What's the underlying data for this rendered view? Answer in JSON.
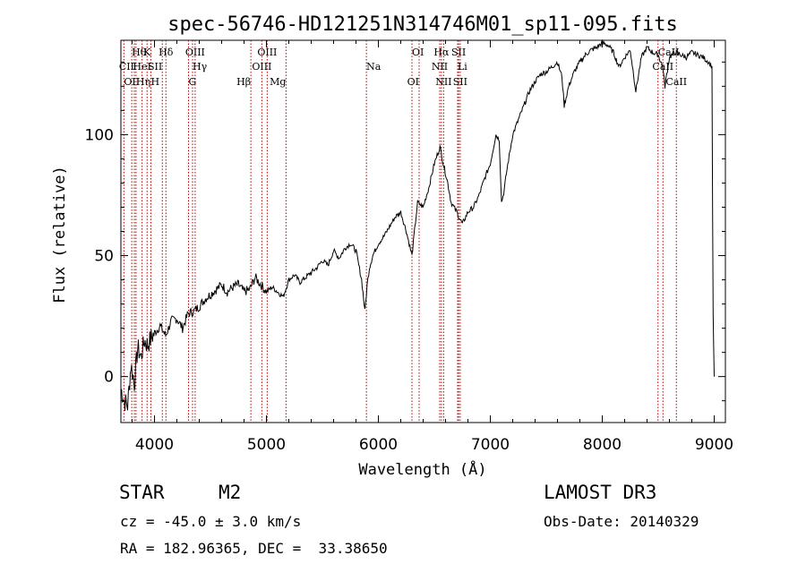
{
  "chart_data": {
    "type": "line",
    "title": "spec-56746-HD121251N314746M01_sp11-095.fits",
    "xlabel": "Wavelength (Å)",
    "ylabel": "Flux (relative)",
    "xlim": [
      3700,
      9100
    ],
    "ylim": [
      -19,
      139
    ],
    "xticks": [
      4000,
      5000,
      6000,
      7000,
      8000,
      9000
    ],
    "yticks": [
      0,
      50,
      100
    ],
    "series": [
      {
        "name": "spectrum",
        "x": [
          3700,
          3730,
          3760,
          3790,
          3820,
          3850,
          3880,
          3910,
          3940,
          3970,
          4000,
          4050,
          4100,
          4150,
          4200,
          4250,
          4300,
          4350,
          4400,
          4450,
          4500,
          4550,
          4600,
          4650,
          4700,
          4750,
          4800,
          4850,
          4900,
          4950,
          5000,
          5050,
          5100,
          5150,
          5200,
          5250,
          5300,
          5350,
          5400,
          5450,
          5500,
          5550,
          5600,
          5650,
          5700,
          5750,
          5800,
          5850,
          5880,
          5900,
          5920,
          5950,
          6000,
          6050,
          6100,
          6150,
          6200,
          6250,
          6300,
          6350,
          6400,
          6450,
          6500,
          6550,
          6580,
          6620,
          6650,
          6700,
          6750,
          6800,
          6850,
          6900,
          6950,
          7000,
          7050,
          7080,
          7100,
          7120,
          7150,
          7200,
          7250,
          7300,
          7350,
          7400,
          7450,
          7500,
          7550,
          7600,
          7640,
          7660,
          7700,
          7750,
          7800,
          7850,
          7900,
          7950,
          8000,
          8050,
          8100,
          8150,
          8200,
          8250,
          8300,
          8350,
          8400,
          8450,
          8500,
          8540,
          8560,
          8600,
          8650,
          8700,
          8750,
          8800,
          8850,
          8900,
          8950,
          8980,
          8990,
          9000
        ],
        "values": [
          -5,
          -10,
          -12,
          5,
          -3,
          12,
          8,
          15,
          13,
          16,
          18,
          21,
          17,
          23,
          24,
          20,
          26,
          27,
          29,
          32,
          34,
          36,
          38,
          35,
          37,
          38,
          35,
          36,
          41,
          38,
          35,
          37,
          35,
          33,
          40,
          42,
          39,
          41,
          43,
          45,
          48,
          46,
          52,
          49,
          53,
          55,
          52,
          40,
          27,
          38,
          45,
          50,
          55,
          58,
          62,
          66,
          68,
          60,
          50,
          72,
          70,
          78,
          88,
          95,
          88,
          80,
          72,
          68,
          63,
          68,
          70,
          75,
          82,
          88,
          100,
          98,
          72,
          76,
          86,
          100,
          106,
          112,
          118,
          122,
          125,
          126,
          128,
          130,
          124,
          112,
          120,
          126,
          130,
          133,
          135,
          136,
          138,
          137,
          134,
          128,
          132,
          135,
          118,
          132,
          136,
          134,
          133,
          128,
          120,
          132,
          134,
          133,
          132,
          134,
          133,
          132,
          130,
          128,
          25,
          0
        ]
      }
    ],
    "line_markers": [
      {
        "label": "Hθ",
        "x": 3797,
        "row": 1,
        "label_align": "start"
      },
      {
        "label": "CII",
        "x": 3820,
        "row": 2,
        "label_align": "end"
      },
      {
        "label": "OII",
        "x": 3727,
        "row": 3,
        "label_align": "start"
      },
      {
        "label": "HeI",
        "x": 3889,
        "row": 2,
        "label_align": "middle"
      },
      {
        "label": "Hη",
        "x": 3835,
        "row": 3,
        "label_align": "start"
      },
      {
        "label": "K",
        "x": 3934,
        "row": 1,
        "label_align": "middle"
      },
      {
        "label": "H",
        "x": 3968,
        "row": 3,
        "label_align": "start"
      },
      {
        "label": "SII",
        "x": 4070,
        "row": 2,
        "label_align": "end"
      },
      {
        "label": "Hδ",
        "x": 4102,
        "row": 1,
        "label_align": "middle"
      },
      {
        "label": "OIII",
        "x": 4363,
        "row": 1,
        "label_align": "middle"
      },
      {
        "label": "Hγ",
        "x": 4340,
        "row": 2,
        "label_align": "start"
      },
      {
        "label": "G",
        "x": 4304,
        "row": 3,
        "label_align": "start"
      },
      {
        "label": "Hβ",
        "x": 4861,
        "row": 3,
        "label_align": "end"
      },
      {
        "label": "OIII",
        "x": 5007,
        "row": 1,
        "label_align": "middle"
      },
      {
        "label": "OIII",
        "x": 4959,
        "row": 2,
        "label_align": "middle"
      },
      {
        "label": "Mg",
        "x": 5175,
        "row": 3,
        "label_align": "end"
      },
      {
        "label": "Na",
        "x": 5893,
        "row": 2,
        "label_align": "start"
      },
      {
        "label": "OI",
        "x": 6300,
        "row": 1,
        "label_align": "start"
      },
      {
        "label": "OI",
        "x": 6364,
        "row": 3,
        "label_align": "end"
      },
      {
        "label": "Hα",
        "x": 6563,
        "row": 1,
        "label_align": "middle"
      },
      {
        "label": "NII",
        "x": 6548,
        "row": 2,
        "label_align": "middle"
      },
      {
        "label": "NII",
        "x": 6583,
        "row": 3,
        "label_align": "middle"
      },
      {
        "label": "SII",
        "x": 6717,
        "row": 1,
        "label_align": "middle"
      },
      {
        "label": "Li",
        "x": 6708,
        "row": 2,
        "label_align": "start"
      },
      {
        "label": "SII",
        "x": 6731,
        "row": 3,
        "label_align": "middle"
      },
      {
        "label": "CaII",
        "x": 8498,
        "row": 1,
        "label_align": "start"
      },
      {
        "label": "CaII",
        "x": 8542,
        "row": 2,
        "label_align": "middle"
      },
      {
        "label": "CaII",
        "x": 8662,
        "row": 3,
        "label_align": "middle"
      }
    ]
  },
  "info": {
    "class_label": "STAR",
    "subclass": "M2",
    "cz": "cz = -45.0 ± 3.0 km/s",
    "coords": "RA = 182.96365, DEC =  33.38650",
    "survey": "LAMOST DR3",
    "obs_date": "Obs-Date: 20140329"
  }
}
